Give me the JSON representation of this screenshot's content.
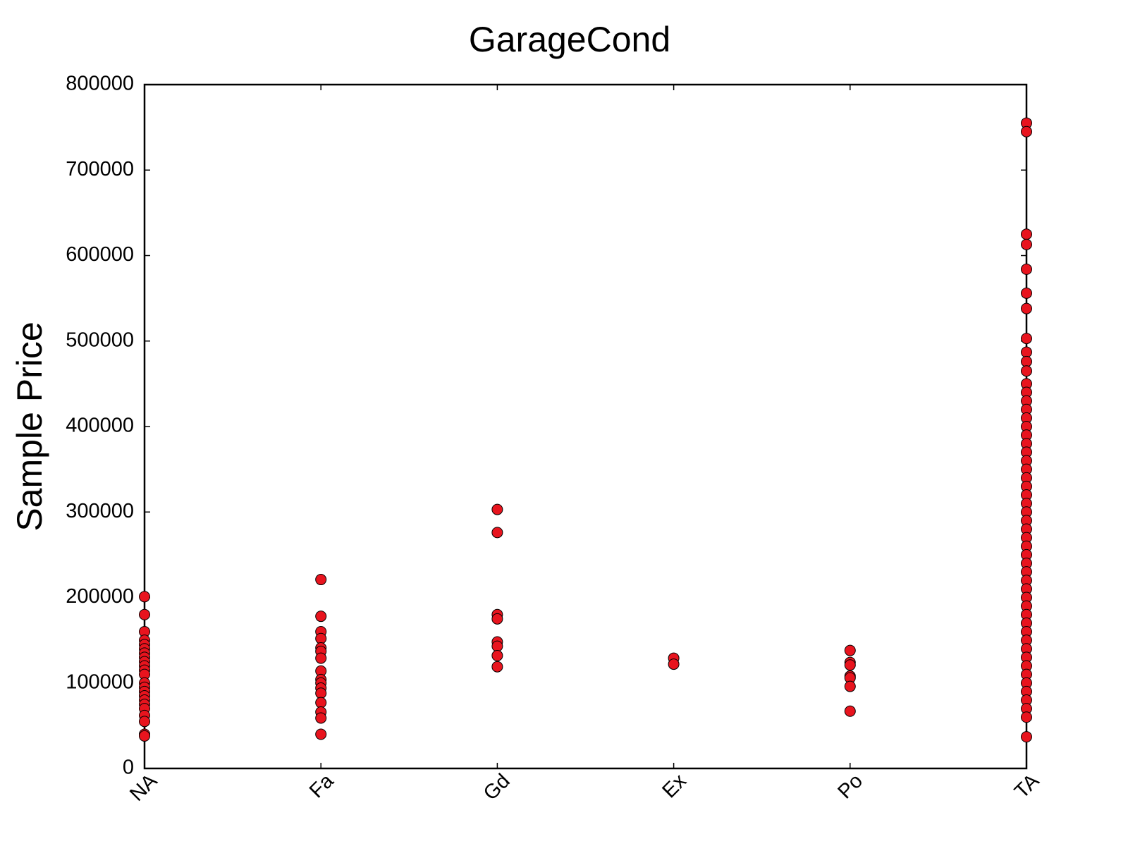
{
  "chart_data": {
    "type": "scatter",
    "title": "GarageCond",
    "ylabel": "Sample Price",
    "categories": [
      "NA",
      "Fa",
      "Gd",
      "Ex",
      "Po",
      "TA"
    ],
    "color": "#e8141e",
    "values": [
      [
        201000,
        180000,
        160000,
        150000,
        145000,
        140000,
        135000,
        130000,
        125000,
        120000,
        115000,
        110000,
        100000,
        95000,
        90000,
        85000,
        80000,
        75000,
        70000,
        62000,
        55000,
        40000,
        38000
      ],
      [
        221000,
        178000,
        160000,
        152000,
        141000,
        137000,
        129000,
        114000,
        104000,
        100000,
        94000,
        88000,
        77000,
        66000,
        59000,
        40000
      ],
      [
        303000,
        276000,
        180000,
        175000,
        148000,
        143000,
        132000,
        119000
      ],
      [
        129000,
        122000
      ],
      [
        138000,
        124000,
        121000,
        108000,
        106000,
        96000,
        67000
      ],
      [
        755000,
        745000,
        625000,
        613000,
        584000,
        556000,
        538000,
        503000,
        487000,
        476000,
        465000,
        450000,
        440000,
        430000,
        420000,
        410000,
        400000,
        390000,
        380000,
        370000,
        360000,
        350000,
        340000,
        330000,
        320000,
        310000,
        300000,
        290000,
        280000,
        270000,
        260000,
        250000,
        240000,
        230000,
        220000,
        210000,
        200000,
        190000,
        180000,
        170000,
        160000,
        150000,
        140000,
        130000,
        120000,
        110000,
        100000,
        90000,
        80000,
        70000,
        60000,
        37000
      ]
    ],
    "ylim": [
      0,
      800000
    ],
    "yticks": [
      0,
      100000,
      200000,
      300000,
      400000,
      500000,
      600000,
      700000,
      800000
    ],
    "grid": false
  }
}
